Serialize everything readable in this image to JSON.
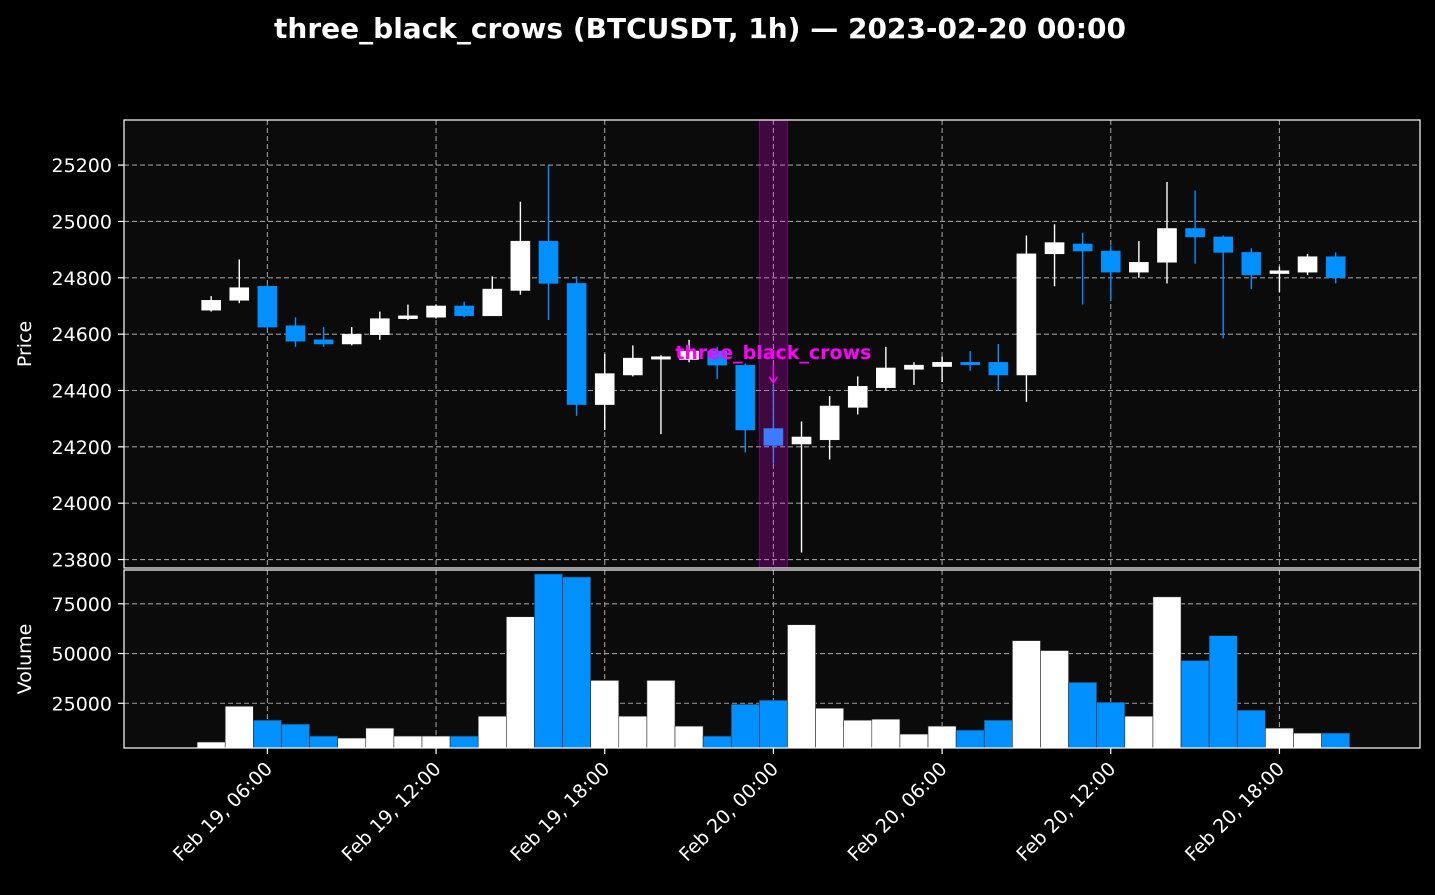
{
  "title": "three_black_crows (BTCUSDT, 1h) — 2023-02-20 00:00",
  "colors": {
    "background": "#000000",
    "plot_bg": "#0b0b0b",
    "up": "#ffffff",
    "down": "#0090ff",
    "highlight_candle": "#3b7cff",
    "pattern": "#ff00ff",
    "grid": "#9a9a9a"
  },
  "chart_data": [
    {
      "type": "candlestick",
      "ylabel": "Price",
      "ylim": [
        23770,
        25360
      ],
      "yticks": [
        23800,
        24000,
        24200,
        24400,
        24600,
        24800,
        25000,
        25200
      ],
      "xlim": [
        -5.1,
        41
      ],
      "x_ticks": [
        {
          "pos": 0,
          "label": "Feb 19, 06:00"
        },
        {
          "pos": 6,
          "label": "Feb 19, 12:00"
        },
        {
          "pos": 12,
          "label": "Feb 19, 18:00"
        },
        {
          "pos": 18,
          "label": "Feb 20, 00:00"
        },
        {
          "pos": 24,
          "label": "Feb 20, 06:00"
        },
        {
          "pos": 30,
          "label": "Feb 20, 12:00"
        },
        {
          "pos": 36,
          "label": "Feb 20, 18:00"
        }
      ],
      "grid": true,
      "candles": [
        {
          "i": -2,
          "o": 24685,
          "h": 24735,
          "l": 24680,
          "c": 24720
        },
        {
          "i": -1,
          "o": 24720,
          "h": 24865,
          "l": 24710,
          "c": 24765
        },
        {
          "i": 0,
          "o": 24770,
          "h": 24775,
          "l": 24620,
          "c": 24625
        },
        {
          "i": 1,
          "o": 24630,
          "h": 24660,
          "l": 24555,
          "c": 24575
        },
        {
          "i": 2,
          "o": 24580,
          "h": 24625,
          "l": 24555,
          "c": 24565
        },
        {
          "i": 3,
          "o": 24565,
          "h": 24625,
          "l": 24560,
          "c": 24600
        },
        {
          "i": 4,
          "o": 24598,
          "h": 24680,
          "l": 24580,
          "c": 24655
        },
        {
          "i": 5,
          "o": 24655,
          "h": 24705,
          "l": 24650,
          "c": 24665
        },
        {
          "i": 6,
          "o": 24660,
          "h": 24705,
          "l": 24655,
          "c": 24700
        },
        {
          "i": 7,
          "o": 24700,
          "h": 24715,
          "l": 24660,
          "c": 24665
        },
        {
          "i": 8,
          "o": 24665,
          "h": 24805,
          "l": 24665,
          "c": 24760
        },
        {
          "i": 9,
          "o": 24755,
          "h": 25070,
          "l": 24740,
          "c": 24930
        },
        {
          "i": 10,
          "o": 24930,
          "h": 25200,
          "l": 24650,
          "c": 24780
        },
        {
          "i": 11,
          "o": 24780,
          "h": 24805,
          "l": 24310,
          "c": 24350
        },
        {
          "i": 12,
          "o": 24350,
          "h": 24530,
          "l": 24260,
          "c": 24460
        },
        {
          "i": 13,
          "o": 24455,
          "h": 24560,
          "l": 24450,
          "c": 24515
        },
        {
          "i": 14,
          "o": 24515,
          "h": 24525,
          "l": 24245,
          "c": 24520
        },
        {
          "i": 15,
          "o": 24510,
          "h": 24580,
          "l": 24500,
          "c": 24540
        },
        {
          "i": 16,
          "o": 24540,
          "h": 24555,
          "l": 24440,
          "c": 24490
        },
        {
          "i": 17,
          "o": 24490,
          "h": 24495,
          "l": 24180,
          "c": 24260
        },
        {
          "i": 18,
          "o": 24265,
          "h": 24420,
          "l": 24140,
          "c": 24205
        },
        {
          "i": 19,
          "o": 24210,
          "h": 24290,
          "l": 23825,
          "c": 24235
        },
        {
          "i": 20,
          "o": 24225,
          "h": 24380,
          "l": 24155,
          "c": 24345
        },
        {
          "i": 21,
          "o": 24340,
          "h": 24450,
          "l": 24315,
          "c": 24415
        },
        {
          "i": 22,
          "o": 24410,
          "h": 24555,
          "l": 24400,
          "c": 24480
        },
        {
          "i": 23,
          "o": 24475,
          "h": 24500,
          "l": 24420,
          "c": 24490
        },
        {
          "i": 24,
          "o": 24485,
          "h": 24520,
          "l": 24430,
          "c": 24500
        },
        {
          "i": 25,
          "o": 24500,
          "h": 24540,
          "l": 24470,
          "c": 24495
        },
        {
          "i": 26,
          "o": 24500,
          "h": 24565,
          "l": 24400,
          "c": 24455
        },
        {
          "i": 27,
          "o": 24455,
          "h": 24950,
          "l": 24360,
          "c": 24885
        },
        {
          "i": 28,
          "o": 24885,
          "h": 24990,
          "l": 24770,
          "c": 24925
        },
        {
          "i": 29,
          "o": 24920,
          "h": 24960,
          "l": 24705,
          "c": 24895
        },
        {
          "i": 30,
          "o": 24895,
          "h": 24915,
          "l": 24720,
          "c": 24820
        },
        {
          "i": 31,
          "o": 24820,
          "h": 24930,
          "l": 24800,
          "c": 24855
        },
        {
          "i": 32,
          "o": 24855,
          "h": 25140,
          "l": 24780,
          "c": 24975
        },
        {
          "i": 33,
          "o": 24975,
          "h": 25110,
          "l": 24850,
          "c": 24945
        },
        {
          "i": 34,
          "o": 24945,
          "h": 24950,
          "l": 24585,
          "c": 24890
        },
        {
          "i": 35,
          "o": 24890,
          "h": 24905,
          "l": 24760,
          "c": 24810
        },
        {
          "i": 36,
          "o": 24815,
          "h": 24840,
          "l": 24750,
          "c": 24825
        },
        {
          "i": 37,
          "o": 24820,
          "h": 24885,
          "l": 24810,
          "c": 24875
        },
        {
          "i": 38,
          "o": 24875,
          "h": 24890,
          "l": 24780,
          "c": 24800
        }
      ],
      "pattern": {
        "label": "three_black_crows",
        "index": 18,
        "span": [
          17.5,
          18.5
        ]
      }
    },
    {
      "type": "bar",
      "ylabel": "Volume",
      "ylim": [
        2500,
        92000
      ],
      "yticks": [
        25000,
        50000,
        75000
      ],
      "grid": true,
      "volumes": [
        {
          "i": -2,
          "v": 5500,
          "dir": "up"
        },
        {
          "i": -1,
          "v": 23500,
          "dir": "up"
        },
        {
          "i": 0,
          "v": 16500,
          "dir": "down"
        },
        {
          "i": 1,
          "v": 14500,
          "dir": "down"
        },
        {
          "i": 2,
          "v": 8500,
          "dir": "down"
        },
        {
          "i": 3,
          "v": 7500,
          "dir": "up"
        },
        {
          "i": 4,
          "v": 12500,
          "dir": "up"
        },
        {
          "i": 5,
          "v": 8500,
          "dir": "up"
        },
        {
          "i": 6,
          "v": 8500,
          "dir": "up"
        },
        {
          "i": 7,
          "v": 8500,
          "dir": "down"
        },
        {
          "i": 8,
          "v": 18500,
          "dir": "up"
        },
        {
          "i": 9,
          "v": 68500,
          "dir": "up"
        },
        {
          "i": 10,
          "v": 90000,
          "dir": "down"
        },
        {
          "i": 11,
          "v": 88500,
          "dir": "down"
        },
        {
          "i": 12,
          "v": 36500,
          "dir": "up"
        },
        {
          "i": 13,
          "v": 18500,
          "dir": "up"
        },
        {
          "i": 14,
          "v": 36500,
          "dir": "up"
        },
        {
          "i": 15,
          "v": 13500,
          "dir": "up"
        },
        {
          "i": 16,
          "v": 8500,
          "dir": "down"
        },
        {
          "i": 17,
          "v": 24500,
          "dir": "down"
        },
        {
          "i": 18,
          "v": 26500,
          "dir": "down"
        },
        {
          "i": 19,
          "v": 64500,
          "dir": "up"
        },
        {
          "i": 20,
          "v": 22500,
          "dir": "up"
        },
        {
          "i": 21,
          "v": 16500,
          "dir": "up"
        },
        {
          "i": 22,
          "v": 17000,
          "dir": "up"
        },
        {
          "i": 23,
          "v": 9500,
          "dir": "up"
        },
        {
          "i": 24,
          "v": 13500,
          "dir": "up"
        },
        {
          "i": 25,
          "v": 11500,
          "dir": "down"
        },
        {
          "i": 26,
          "v": 16500,
          "dir": "down"
        },
        {
          "i": 27,
          "v": 56500,
          "dir": "up"
        },
        {
          "i": 28,
          "v": 51500,
          "dir": "up"
        },
        {
          "i": 29,
          "v": 35500,
          "dir": "down"
        },
        {
          "i": 30,
          "v": 25500,
          "dir": "down"
        },
        {
          "i": 31,
          "v": 18500,
          "dir": "up"
        },
        {
          "i": 32,
          "v": 78500,
          "dir": "up"
        },
        {
          "i": 33,
          "v": 46500,
          "dir": "down"
        },
        {
          "i": 34,
          "v": 59000,
          "dir": "down"
        },
        {
          "i": 35,
          "v": 21500,
          "dir": "down"
        },
        {
          "i": 36,
          "v": 12500,
          "dir": "up"
        },
        {
          "i": 37,
          "v": 10000,
          "dir": "up"
        },
        {
          "i": 38,
          "v": 10000,
          "dir": "down"
        }
      ]
    }
  ]
}
